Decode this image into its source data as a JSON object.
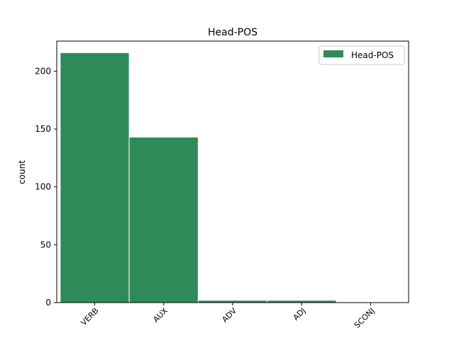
{
  "chart_data": {
    "type": "bar",
    "title": "Head-POS",
    "xlabel": "",
    "ylabel": "count",
    "categories": [
      "VERB",
      "AUX",
      "ADV",
      "ADJ",
      "SCONJ"
    ],
    "series": [
      {
        "name": "Head-POS",
        "values": [
          216,
          143,
          2,
          2,
          0
        ],
        "color": "#2e8b57",
        "edge_color": "#ffffff"
      }
    ],
    "ylim": [
      0,
      226
    ],
    "yticks": [
      0,
      50,
      100,
      150,
      200
    ],
    "grid": false,
    "legend_position": "top-right"
  }
}
